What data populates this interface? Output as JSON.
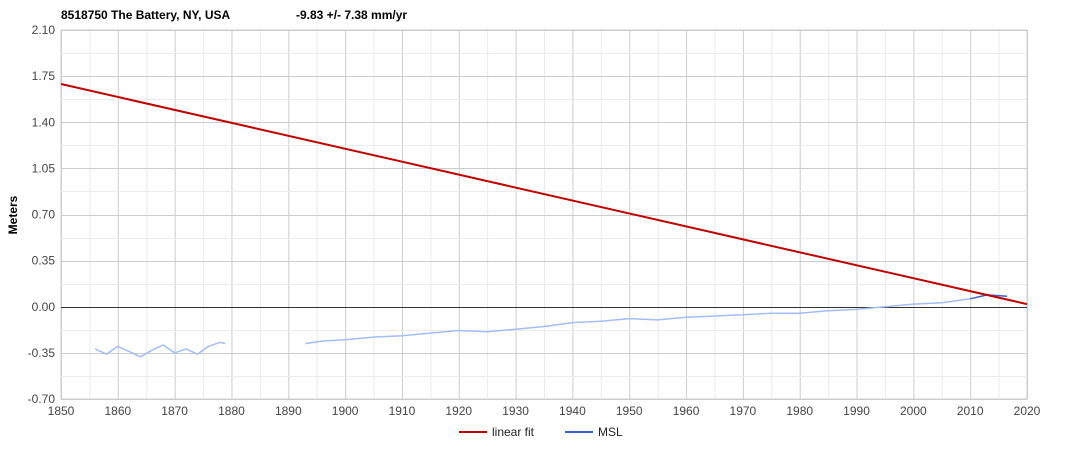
{
  "chart_data": {
    "type": "line",
    "title": "8518750 The Battery, NY, USA",
    "subtitle": "-9.83 +/- 7.38 mm/yr",
    "xlabel": "",
    "ylabel": "Meters",
    "xlim": [
      1850,
      2020
    ],
    "ylim": [
      -0.7,
      2.1
    ],
    "x_ticks": [
      "1850",
      "1860",
      "1870",
      "1880",
      "1890",
      "1900",
      "1910",
      "1920",
      "1930",
      "1940",
      "1950",
      "1960",
      "1970",
      "1980",
      "1990",
      "2000",
      "2010",
      "2020"
    ],
    "y_ticks": [
      "2.10",
      "1.75",
      "1.40",
      "1.05",
      "0.70",
      "0.35",
      "0.00",
      "-0.35",
      "-0.70"
    ],
    "grid": true,
    "zero_line": true,
    "legend_position": "bottom",
    "series": [
      {
        "name": "linear fit",
        "color": "#c00000",
        "x": [
          1850,
          2020
        ],
        "y": [
          1.69,
          0.02
        ]
      },
      {
        "name": "MSL",
        "color": "#a3bdf5",
        "recent_color": "#3b62cc",
        "recent_from": 2010,
        "segments": [
          {
            "x": [
              1856.0,
              1858.0,
              1860.0,
              1862.0,
              1864.0,
              1866.0,
              1868.0,
              1870.0,
              1872.0,
              1874.0,
              1876.0,
              1878.0,
              1878.9
            ],
            "y": [
              -0.32,
              -0.36,
              -0.3,
              -0.34,
              -0.38,
              -0.33,
              -0.29,
              -0.35,
              -0.32,
              -0.36,
              -0.3,
              -0.27,
              -0.28
            ]
          },
          {
            "x": [
              1893.0,
              1896.0,
              1900.0,
              1905.0,
              1910.0,
              1915.0,
              1920.0,
              1925.0,
              1930.0,
              1935.0,
              1940.0,
              1945.0,
              1950.0,
              1955.0,
              1960.0,
              1965.0,
              1970.0,
              1975.0,
              1980.0,
              1985.0,
              1990.0,
              1995.0,
              2000.0,
              2005.0,
              2010.0,
              2013.0,
              2016.5
            ],
            "y": [
              -0.28,
              -0.26,
              -0.25,
              -0.23,
              -0.22,
              -0.2,
              -0.18,
              -0.19,
              -0.17,
              -0.15,
              -0.12,
              -0.11,
              -0.09,
              -0.1,
              -0.08,
              -0.07,
              -0.06,
              -0.05,
              -0.05,
              -0.03,
              -0.02,
              0.0,
              0.02,
              0.03,
              0.06,
              0.09,
              0.08
            ]
          }
        ]
      }
    ]
  }
}
